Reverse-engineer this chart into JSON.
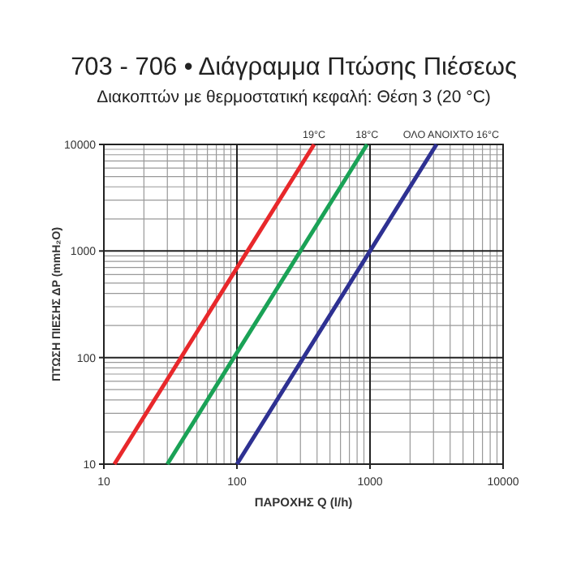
{
  "chart_data": {
    "type": "line",
    "title": "703 - 706 • Διάγραμμα Πτώσης Πιέσεως",
    "subtitle": "Διακοπτών με θερμοστατική κεφαλή: Θέση 3 (20 °C)",
    "xlabel": "ΠΑΡΟΧΗΣ Q (l/h)",
    "ylabel": "ΠΤΩΣΗ ΠΙΕΣΗΣ ΔP (mmH₂O)",
    "log": "xy",
    "grid": true,
    "xlim": [
      10,
      10000
    ],
    "ylim": [
      10,
      10000
    ],
    "xticks": [
      10,
      100,
      1000,
      10000
    ],
    "yticks": [
      10,
      100,
      1000,
      10000
    ],
    "marker": "none",
    "series": [
      {
        "name": "19°C",
        "color": "#e8282b",
        "x": [
          12,
          380
        ],
        "values": [
          10,
          10000
        ]
      },
      {
        "name": "18°C",
        "color": "#1aa256",
        "x": [
          30,
          950
        ],
        "values": [
          10,
          10000
        ]
      },
      {
        "name": "ΟΛΟ ΑΝΟΙΧΤΟ 16°C",
        "color": "#2e3192",
        "x": [
          100,
          1000,
          3160
        ],
        "values": [
          10,
          1000,
          10000
        ]
      }
    ]
  }
}
